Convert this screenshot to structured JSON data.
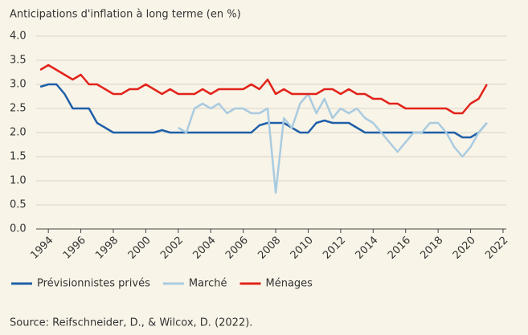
{
  "chart_data": {
    "type": "line",
    "title": "Anticipations d'inflation à long terme (en %)",
    "source": "Source:  Reifschneider, D., & Wilcox, D. (2022).",
    "x": [
      1993.5,
      1994,
      1994.5,
      1995,
      1995.5,
      1996,
      1996.5,
      1997,
      1997.5,
      1998,
      1998.5,
      1999,
      1999.5,
      2000,
      2000.5,
      2001,
      2001.5,
      2002,
      2002.5,
      2003,
      2003.5,
      2004,
      2004.5,
      2005,
      2005.5,
      2006,
      2006.5,
      2007,
      2007.5,
      2008,
      2008.5,
      2009,
      2009.5,
      2010,
      2010.5,
      2011,
      2011.5,
      2012,
      2012.5,
      2013,
      2013.5,
      2014,
      2014.5,
      2015,
      2015.5,
      2016,
      2016.5,
      2017,
      2017.5,
      2018,
      2018.5,
      2019,
      2019.5,
      2020,
      2020.5,
      2021
    ],
    "series": [
      {
        "name": "Prévisionnistes privés",
        "color": "#1f5fa8",
        "values": [
          2.95,
          3.0,
          3.0,
          2.8,
          2.5,
          2.5,
          2.5,
          2.2,
          2.1,
          2.0,
          2.0,
          2.0,
          2.0,
          2.0,
          2.0,
          2.05,
          2.0,
          2.0,
          2.0,
          2.0,
          2.0,
          2.0,
          2.0,
          2.0,
          2.0,
          2.0,
          2.0,
          2.15,
          2.2,
          2.2,
          2.2,
          2.1,
          2.0,
          2.0,
          2.2,
          2.25,
          2.2,
          2.2,
          2.2,
          2.1,
          2.0,
          2.0,
          2.0,
          2.0,
          2.0,
          2.0,
          2.0,
          2.0,
          2.0,
          2.0,
          2.0,
          2.0,
          1.9,
          1.9,
          2.0,
          2.2
        ]
      },
      {
        "name": "Marché",
        "color": "#a9cbe0",
        "values": [
          null,
          null,
          null,
          null,
          null,
          null,
          null,
          null,
          null,
          null,
          null,
          null,
          null,
          null,
          null,
          null,
          null,
          2.1,
          2.0,
          2.5,
          2.6,
          2.5,
          2.6,
          2.4,
          2.5,
          2.5,
          2.4,
          2.4,
          2.5,
          0.75,
          2.3,
          2.1,
          2.6,
          2.8,
          2.4,
          2.7,
          2.3,
          2.5,
          2.4,
          2.5,
          2.3,
          2.2,
          2.0,
          1.8,
          1.6,
          1.8,
          2.0,
          2.0,
          2.2,
          2.2,
          2.0,
          1.7,
          1.5,
          1.7,
          2.0,
          2.2
        ]
      },
      {
        "name": "Ménages",
        "color": "#e2231a",
        "values": [
          3.3,
          3.4,
          3.3,
          3.2,
          3.1,
          3.2,
          3.0,
          3.0,
          2.9,
          2.8,
          2.8,
          2.9,
          2.9,
          3.0,
          2.9,
          2.8,
          2.9,
          2.8,
          2.8,
          2.8,
          2.9,
          2.8,
          2.9,
          2.9,
          2.9,
          2.9,
          3.0,
          2.9,
          3.1,
          2.8,
          2.9,
          2.8,
          2.8,
          2.8,
          2.8,
          2.9,
          2.9,
          2.8,
          2.9,
          2.8,
          2.8,
          2.7,
          2.7,
          2.6,
          2.6,
          2.5,
          2.5,
          2.5,
          2.5,
          2.5,
          2.5,
          2.4,
          2.4,
          2.6,
          2.7,
          3.0
        ]
      }
    ],
    "xlim": [
      1993.25,
      2022.2
    ],
    "xticks": [
      1994,
      1996,
      1998,
      2000,
      2002,
      2004,
      2006,
      2008,
      2010,
      2012,
      2014,
      2016,
      2018,
      2020,
      2022
    ],
    "ylim": [
      0,
      4
    ],
    "yticks": [
      {
        "value": 0,
        "label": "0.0"
      },
      0.5,
      {
        "value": 1,
        "label": "1.0"
      },
      1.5,
      {
        "value": 2,
        "label": "2.0"
      },
      2.5,
      {
        "value": 3,
        "label": "3.0"
      },
      3.5,
      {
        "value": 4,
        "label": "4.0"
      }
    ],
    "grid": true
  }
}
